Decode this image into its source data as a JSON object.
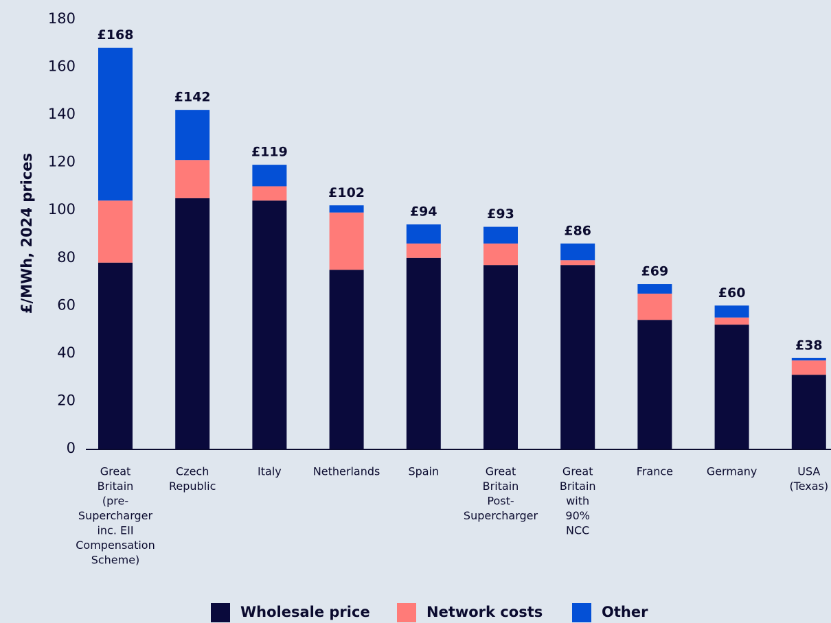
{
  "chart_data": {
    "type": "stacked_bar",
    "y_label": "£/MWh, 2024 prices",
    "categories": [
      [
        "Great",
        "Britain",
        "(pre-",
        "Supercharger",
        "inc. EII",
        "Compensation",
        "Scheme)"
      ],
      [
        "Czech",
        "Republic"
      ],
      [
        "Italy"
      ],
      [
        "Netherlands"
      ],
      [
        "Spain"
      ],
      [
        "Great",
        "Britain",
        "Post-",
        "Supercharger"
      ],
      [
        "Great",
        "Britain",
        "with",
        "90%",
        "NCC"
      ],
      [
        "France"
      ],
      [
        "Germany"
      ],
      [
        "USA",
        "(Texas)"
      ]
    ],
    "series": [
      {
        "name": "Wholesale price",
        "color": "#0a0a3c",
        "values": [
          78,
          105,
          104,
          75,
          80,
          77,
          77,
          54,
          52,
          31
        ]
      },
      {
        "name": "Network costs",
        "color": "#ff7b78",
        "values": [
          26,
          16,
          6,
          24,
          6,
          9,
          2,
          11,
          3,
          6
        ]
      },
      {
        "name": "Other",
        "color": "#0450d6",
        "values": [
          64,
          21,
          9,
          3,
          8,
          7,
          7,
          4,
          5,
          1
        ]
      }
    ],
    "totals": [
      168,
      142,
      119,
      102,
      94,
      93,
      86,
      69,
      60,
      38
    ],
    "total_labels": [
      "£168",
      "£142",
      "£119",
      "£102",
      "£94",
      "£93",
      "£86",
      "£69",
      "£60",
      "£38"
    ],
    "ylim": [
      0,
      180
    ],
    "yticks": [
      0,
      20,
      40,
      60,
      80,
      100,
      120,
      140,
      160,
      180
    ],
    "grid": false,
    "legend": "bottom"
  }
}
